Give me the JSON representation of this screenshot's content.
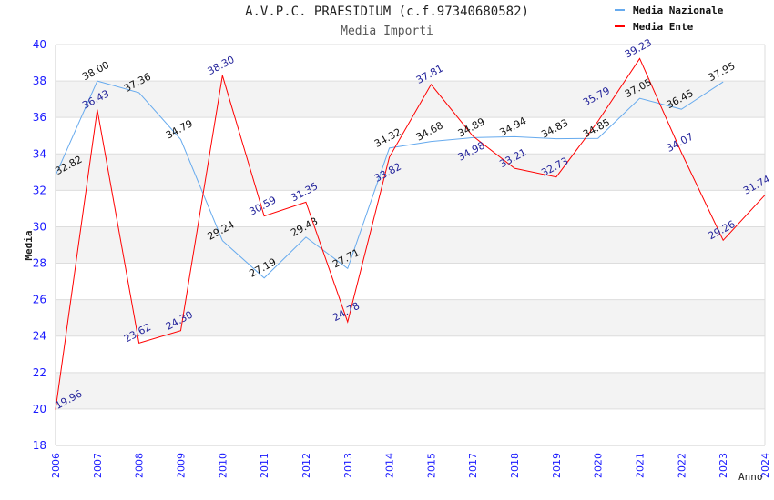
{
  "chart_data": {
    "type": "line",
    "title": "A.V.P.C. PRAESIDIUM (c.f.97340680582)",
    "subtitle": "Media Importi",
    "xlabel": "Anno",
    "ylabel": "Media",
    "ylim": [
      18,
      40
    ],
    "yticks": [
      "18",
      "20",
      "22",
      "24",
      "26",
      "28",
      "30",
      "32",
      "34",
      "36",
      "38",
      "40"
    ],
    "categories": [
      "2006",
      "2007",
      "2008",
      "2009",
      "2010",
      "2011",
      "2012",
      "2013",
      "2014",
      "2015",
      "2017",
      "2018",
      "2019",
      "2020",
      "2021",
      "2022",
      "2023",
      "2024"
    ],
    "legend_position": "top-right",
    "series": [
      {
        "name": "Media Nazionale",
        "color": "#66aaee",
        "label_color": "#111111",
        "values": [
          32.82,
          38.0,
          37.36,
          34.79,
          29.24,
          27.19,
          29.43,
          27.71,
          34.32,
          34.68,
          34.89,
          34.94,
          34.83,
          34.85,
          37.05,
          36.45,
          37.95,
          null
        ]
      },
      {
        "name": "Media Ente",
        "color": "#ff0000",
        "label_color": "#22229a",
        "values": [
          19.96,
          36.43,
          23.62,
          24.3,
          38.3,
          30.59,
          31.35,
          24.78,
          33.82,
          37.81,
          34.98,
          33.21,
          32.73,
          35.79,
          39.23,
          34.07,
          29.26,
          31.74
        ]
      }
    ]
  }
}
